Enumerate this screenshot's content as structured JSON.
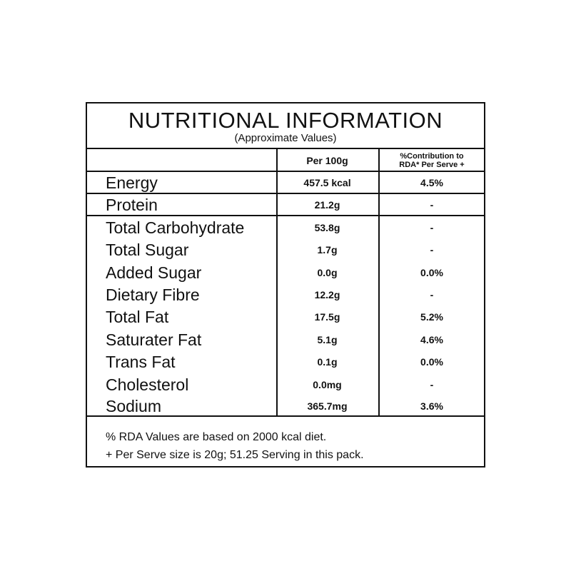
{
  "header": {
    "title": "NUTRITIONAL INFORMATION",
    "subtitle": "(Approximate Values)"
  },
  "columns": {
    "per_100g": "Per 100g",
    "rda": "%Contribution to RDA* Per Serve +"
  },
  "rows": [
    {
      "name": "Energy",
      "per_100g": "457.5 kcal",
      "rda": "4.5%"
    },
    {
      "name": "Protein",
      "per_100g": "21.2g",
      "rda": "-"
    },
    {
      "name": "Total Carbohydrate",
      "per_100g": "53.8g",
      "rda": "-"
    },
    {
      "name": "Total Sugar",
      "per_100g": "1.7g",
      "rda": "-"
    },
    {
      "name": "Added Sugar",
      "per_100g": "0.0g",
      "rda": "0.0%"
    },
    {
      "name": "Dietary Fibre",
      "per_100g": "12.2g",
      "rda": "-"
    },
    {
      "name": "Total Fat",
      "per_100g": "17.5g",
      "rda": "5.2%"
    },
    {
      "name": "Saturater Fat",
      "per_100g": "5.1g",
      "rda": "4.6%"
    },
    {
      "name": "Trans Fat",
      "per_100g": "0.1g",
      "rda": "0.0%"
    },
    {
      "name": "Cholesterol",
      "per_100g": "0.0mg",
      "rda": "-"
    },
    {
      "name": "Sodium",
      "per_100g": "365.7mg",
      "rda": "3.6%"
    }
  ],
  "footnotes": [
    "% RDA Values are based on 2000 kcal diet.",
    "+ Per Serve size is 20g; 51.25 Serving in this pack."
  ]
}
